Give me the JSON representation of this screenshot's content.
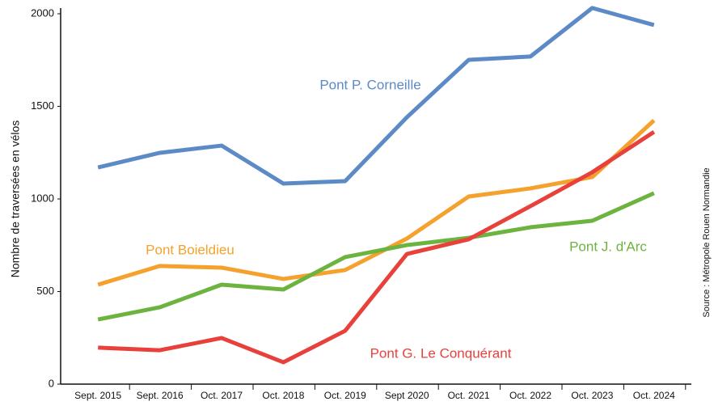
{
  "chart_data": {
    "type": "line",
    "y_label": "Nombre de traversées en vélos",
    "source": "Source : Métropole Rouen Normandie",
    "categories": [
      "Sept. 2015",
      "Sept. 2016",
      "Oct. 2017",
      "Oct. 2018",
      "Oct. 2019",
      "Sept 2020",
      "Oct. 2021",
      "Oct. 2022",
      "Oct. 2023",
      "Oct. 2024"
    ],
    "series": [
      {
        "name": "Pont P. Corneille",
        "color": "#5b8ac6",
        "values": [
          1170,
          1249,
          1288,
          1083,
          1096,
          1441,
          1751,
          1769,
          2031,
          1939
        ]
      },
      {
        "name": "Pont Boieldieu",
        "color": "#f4a22d",
        "values": [
          537,
          638,
          629,
          568,
          616,
          786,
          1013,
          1057,
          1118,
          1424
        ]
      },
      {
        "name": "Pont J. d'Arc",
        "color": "#6db33f",
        "values": [
          349,
          415,
          537,
          511,
          686,
          751,
          790,
          847,
          882,
          1031
        ]
      },
      {
        "name": "Pont G. Le Conquérant",
        "color": "#e8413c",
        "values": [
          197,
          183,
          249,
          118,
          288,
          703,
          782,
          961,
          1144,
          1362
        ]
      }
    ],
    "ylim": [
      0,
      2000
    ],
    "yticks": [
      0,
      500,
      1000,
      1500,
      2000
    ],
    "grid": false
  }
}
